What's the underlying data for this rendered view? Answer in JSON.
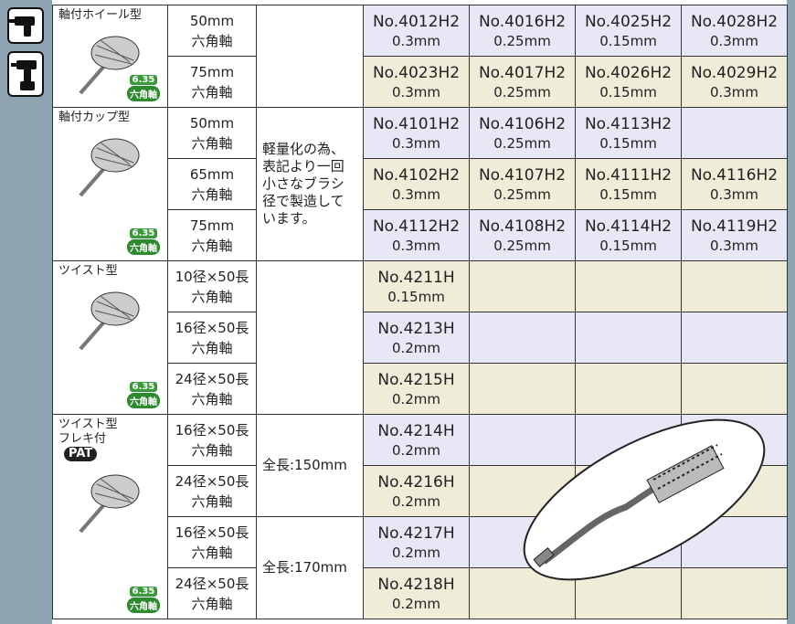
{
  "groups": [
    {
      "name": [
        "軸付ホイール型"
      ],
      "badge": {
        "size": "6.35",
        "label": "六角軸"
      },
      "notes": [],
      "rows": [
        {
          "size": "50mm",
          "shaft": "六角軸",
          "products": [
            {
              "code": "No.4012H2",
              "spec": "0.3mm"
            },
            {
              "code": "No.4016H2",
              "spec": "0.25mm"
            },
            {
              "code": "No.4025H2",
              "spec": "0.15mm"
            },
            {
              "code": "No.4028H2",
              "spec": "0.3mm"
            }
          ]
        },
        {
          "size": "75mm",
          "shaft": "六角軸",
          "products": [
            {
              "code": "No.4023H2",
              "spec": "0.3mm"
            },
            {
              "code": "No.4017H2",
              "spec": "0.25mm"
            },
            {
              "code": "No.4026H2",
              "spec": "0.15mm"
            },
            {
              "code": "No.4029H2",
              "spec": "0.3mm"
            }
          ]
        }
      ]
    },
    {
      "name": [
        "軸付カップ型"
      ],
      "badge": {
        "size": "6.35",
        "label": "六角軸"
      },
      "notes": [
        {
          "lines": [
            "軽量化の為、",
            "表記より一回",
            "小さなブラシ",
            "径で製造して",
            "います。"
          ]
        }
      ],
      "rows": [
        {
          "size": "50mm",
          "shaft": "六角軸",
          "products": [
            {
              "code": "No.4101H2",
              "spec": "0.3mm"
            },
            {
              "code": "No.4106H2",
              "spec": "0.25mm"
            },
            {
              "code": "No.4113H2",
              "spec": "0.15mm"
            },
            null
          ]
        },
        {
          "size": "65mm",
          "shaft": "六角軸",
          "products": [
            {
              "code": "No.4102H2",
              "spec": "0.3mm"
            },
            {
              "code": "No.4107H2",
              "spec": "0.25mm"
            },
            {
              "code": "No.4111H2",
              "spec": "0.15mm"
            },
            {
              "code": "No.4116H2",
              "spec": "0.3mm"
            }
          ]
        },
        {
          "size": "75mm",
          "shaft": "六角軸",
          "products": [
            {
              "code": "No.4112H2",
              "spec": "0.3mm"
            },
            {
              "code": "No.4108H2",
              "spec": "0.25mm"
            },
            {
              "code": "No.4114H2",
              "spec": "0.15mm"
            },
            {
              "code": "No.4119H2",
              "spec": "0.3mm"
            }
          ]
        }
      ]
    },
    {
      "name": [
        "ツイスト型"
      ],
      "badge": {
        "size": "6.35",
        "label": "六角軸"
      },
      "notes": [],
      "rows": [
        {
          "size": "10径×50長",
          "shaft": "六角軸",
          "products": [
            {
              "code": "No.4211H",
              "spec": "0.15mm"
            },
            null,
            null,
            null
          ]
        },
        {
          "size": "16径×50長",
          "shaft": "六角軸",
          "products": [
            {
              "code": "No.4213H",
              "spec": "0.2mm"
            },
            null,
            null,
            null
          ]
        },
        {
          "size": "24径×50長",
          "shaft": "六角軸",
          "products": [
            {
              "code": "No.4215H",
              "spec": "0.2mm"
            },
            null,
            null,
            null
          ]
        }
      ]
    },
    {
      "name": [
        "ツイスト型",
        "フレキ付"
      ],
      "tag": "PAT",
      "badge": {
        "size": "6.35",
        "label": "六角軸"
      },
      "notes": [
        {
          "lines": [
            "全長:150mm"
          ]
        },
        {
          "lines": [
            "全長:170mm"
          ]
        }
      ],
      "rows": [
        {
          "size": "16径×50長",
          "shaft": "六角軸",
          "products": [
            {
              "code": "No.4214H",
              "spec": "0.2mm"
            },
            null,
            null,
            null
          ]
        },
        {
          "size": "24径×50長",
          "shaft": "六角軸",
          "products": [
            {
              "code": "No.4216H",
              "spec": "0.2mm"
            },
            null,
            null,
            null
          ]
        },
        {
          "size": "16径×50長",
          "shaft": "六角軸",
          "products": [
            {
              "code": "No.4217H",
              "spec": "0.2mm"
            },
            null,
            null,
            null
          ]
        },
        {
          "size": "24径×50長",
          "shaft": "六角軸",
          "products": [
            {
              "code": "No.4218H",
              "spec": "0.2mm"
            },
            null,
            null,
            null
          ]
        }
      ]
    }
  ]
}
